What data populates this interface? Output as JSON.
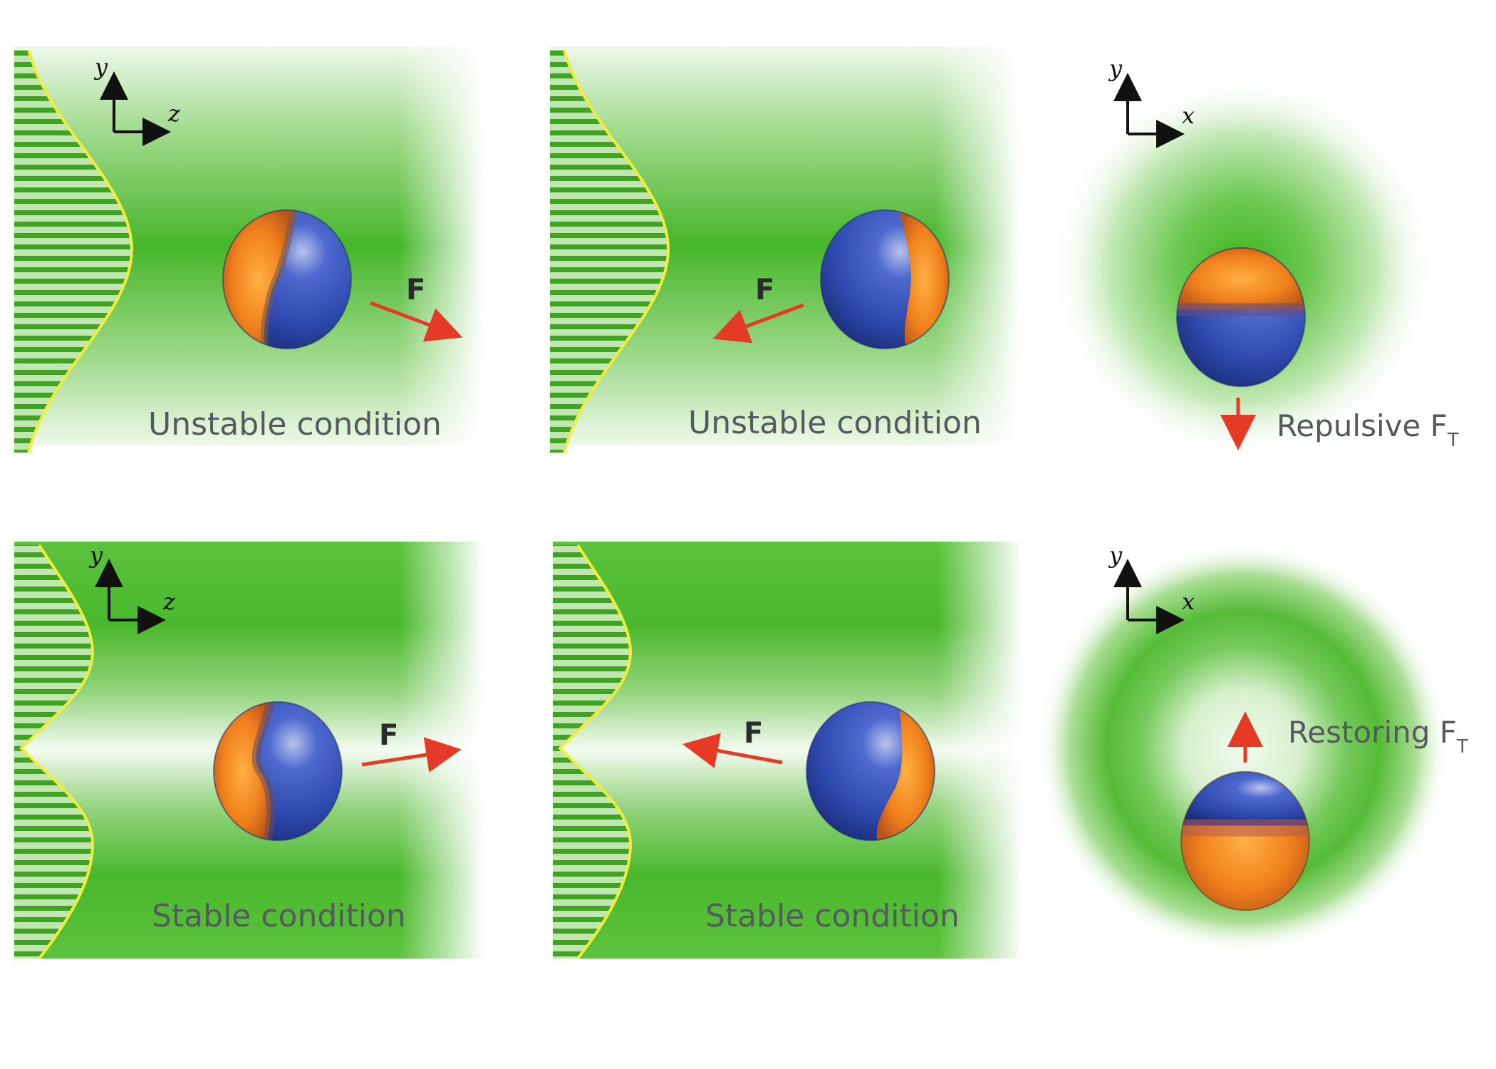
{
  "colors": {
    "beam_green": "#4cbb2e",
    "beam_light": "#eaf8e6",
    "profile_line": "#f2ec3a",
    "arrow_red": "#e43a26",
    "sphere_blue": "#2f4fb4",
    "sphere_orange": "#f28a1e",
    "label_gray": "#555a5e"
  },
  "panels": {
    "top_left": {
      "label": "Unstable condition",
      "force": "F",
      "axis_v": "y",
      "axis_h": "z"
    },
    "top_middle": {
      "label": "Unstable condition",
      "force": "F"
    },
    "top_right": {
      "label": "Repulsive F",
      "sub": "T",
      "axis_v": "y",
      "axis_h": "x"
    },
    "bottom_left": {
      "label": "Stable condition",
      "force": "F",
      "axis_v": "y",
      "axis_h": "z"
    },
    "bottom_middle": {
      "label": "Stable condition",
      "force": "F"
    },
    "bottom_right": {
      "label": "Restoring F",
      "sub": "T",
      "axis_v": "y",
      "axis_h": "x"
    }
  }
}
